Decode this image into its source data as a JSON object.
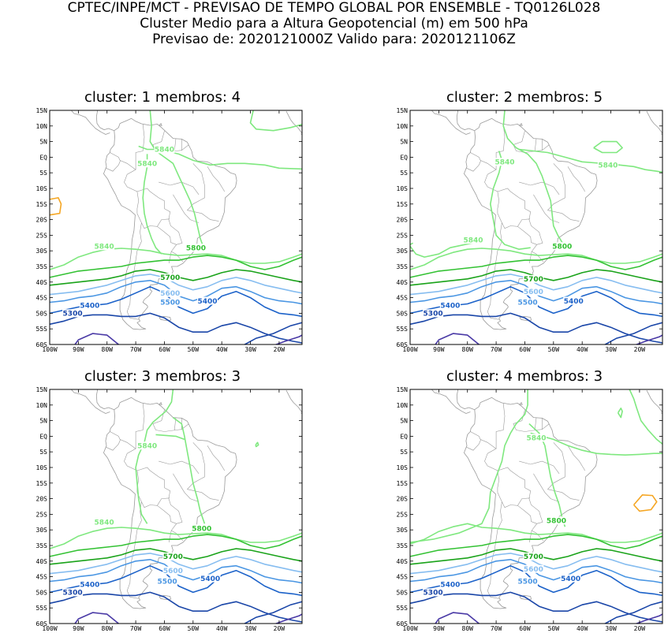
{
  "header": {
    "line1": "CPTEC/INPE/MCT - PREVISAO DE TEMPO GLOBAL POR ENSEMBLE - TQ0126L028",
    "line2": "Cluster Medio para a Altura Geopotencial (m) em 500 hPa",
    "line3": "Previsao de: 2020121000Z   Valido para: 2020121106Z"
  },
  "axes": {
    "lat_ticks": [
      "15N",
      "10N",
      "5N",
      "EQ",
      "5S",
      "10S",
      "15S",
      "20S",
      "25S",
      "30S",
      "35S",
      "40S",
      "45S",
      "50S",
      "55S",
      "60S"
    ],
    "lon_ticks": [
      "100W",
      "90W",
      "80W",
      "70W",
      "60W",
      "50W",
      "40W",
      "30W",
      "20W"
    ]
  },
  "colors": {
    "c5840": "#7fe87f",
    "c5800": "#33c233",
    "c5700": "#1aa31a",
    "c5600": "#86bdf0",
    "c5500": "#4a96e3",
    "c5400": "#1c62c9",
    "c5300": "#1a46a8",
    "c5200": "#4a3aa6",
    "c5900": "#f5a623",
    "coast": "#9a9a9a"
  },
  "panels": [
    {
      "title": "cluster: 1   membros: 4",
      "labels": [
        {
          "text": "5840",
          "level": "c5840",
          "lon": -60,
          "lat": 2.5
        },
        {
          "text": "5840",
          "level": "c5840",
          "lon": -66,
          "lat": -2
        },
        {
          "text": "5840",
          "level": "c5840",
          "lon": -81,
          "lat": -28.5
        },
        {
          "text": "5800",
          "level": "c5800",
          "lon": -49,
          "lat": -29
        },
        {
          "text": "5700",
          "level": "c5700",
          "lon": -58,
          "lat": -38.5
        },
        {
          "text": "5600",
          "level": "c5600",
          "lon": -58,
          "lat": -43.5
        },
        {
          "text": "5500",
          "level": "c5500",
          "lon": -58,
          "lat": -46.5
        },
        {
          "text": "5400",
          "level": "c5400",
          "lon": -86,
          "lat": -47.5
        },
        {
          "text": "5400",
          "level": "c5400",
          "lon": -45,
          "lat": -46
        },
        {
          "text": "5300",
          "level": "c5300",
          "lon": -92,
          "lat": -50
        }
      ]
    },
    {
      "title": "cluster: 2   membros: 5",
      "labels": [
        {
          "text": "5840",
          "level": "c5840",
          "lon": -67,
          "lat": -1.5
        },
        {
          "text": "5840",
          "level": "c5840",
          "lon": -31,
          "lat": -2.5
        },
        {
          "text": "5840",
          "level": "c5840",
          "lon": -78,
          "lat": -26.5
        },
        {
          "text": "5800",
          "level": "c5800",
          "lon": -47,
          "lat": -28.5
        },
        {
          "text": "5700",
          "level": "c5700",
          "lon": -57,
          "lat": -39
        },
        {
          "text": "5600",
          "level": "c5600",
          "lon": -57,
          "lat": -43
        },
        {
          "text": "5500",
          "level": "c5500",
          "lon": -59,
          "lat": -46.5
        },
        {
          "text": "5400",
          "level": "c5400",
          "lon": -86,
          "lat": -47.5
        },
        {
          "text": "5400",
          "level": "c5400",
          "lon": -43,
          "lat": -46
        },
        {
          "text": "5300",
          "level": "c5300",
          "lon": -92,
          "lat": -50
        }
      ]
    },
    {
      "title": "cluster: 3   membros: 3",
      "labels": [
        {
          "text": "5840",
          "level": "c5840",
          "lon": -66,
          "lat": -3
        },
        {
          "text": "5840",
          "level": "c5840",
          "lon": -81,
          "lat": -27.5
        },
        {
          "text": "5800",
          "level": "c5800",
          "lon": -47,
          "lat": -29.5
        },
        {
          "text": "5700",
          "level": "c5700",
          "lon": -57,
          "lat": -38.5
        },
        {
          "text": "5600",
          "level": "c5600",
          "lon": -57,
          "lat": -43
        },
        {
          "text": "5500",
          "level": "c5500",
          "lon": -59,
          "lat": -46.5
        },
        {
          "text": "5400",
          "level": "c5400",
          "lon": -86,
          "lat": -47.5
        },
        {
          "text": "5400",
          "level": "c5400",
          "lon": -44,
          "lat": -45.5
        },
        {
          "text": "5300",
          "level": "c5300",
          "lon": -92,
          "lat": -50
        }
      ]
    },
    {
      "title": "cluster: 4   membros: 3",
      "labels": [
        {
          "text": "5840",
          "level": "c5840",
          "lon": -56,
          "lat": -0.5
        },
        {
          "text": "5800",
          "level": "c5800",
          "lon": -49,
          "lat": -27
        },
        {
          "text": "5700",
          "level": "c5700",
          "lon": -57,
          "lat": -38.5
        },
        {
          "text": "5600",
          "level": "c5600",
          "lon": -57,
          "lat": -42.5
        },
        {
          "text": "5500",
          "level": "c5500",
          "lon": -59,
          "lat": -46.5
        },
        {
          "text": "5400",
          "level": "c5400",
          "lon": -86,
          "lat": -47.5
        },
        {
          "text": "5400",
          "level": "c5400",
          "lon": -44,
          "lat": -45.5
        },
        {
          "text": "5300",
          "level": "c5300",
          "lon": -92,
          "lat": -50
        }
      ]
    }
  ]
}
